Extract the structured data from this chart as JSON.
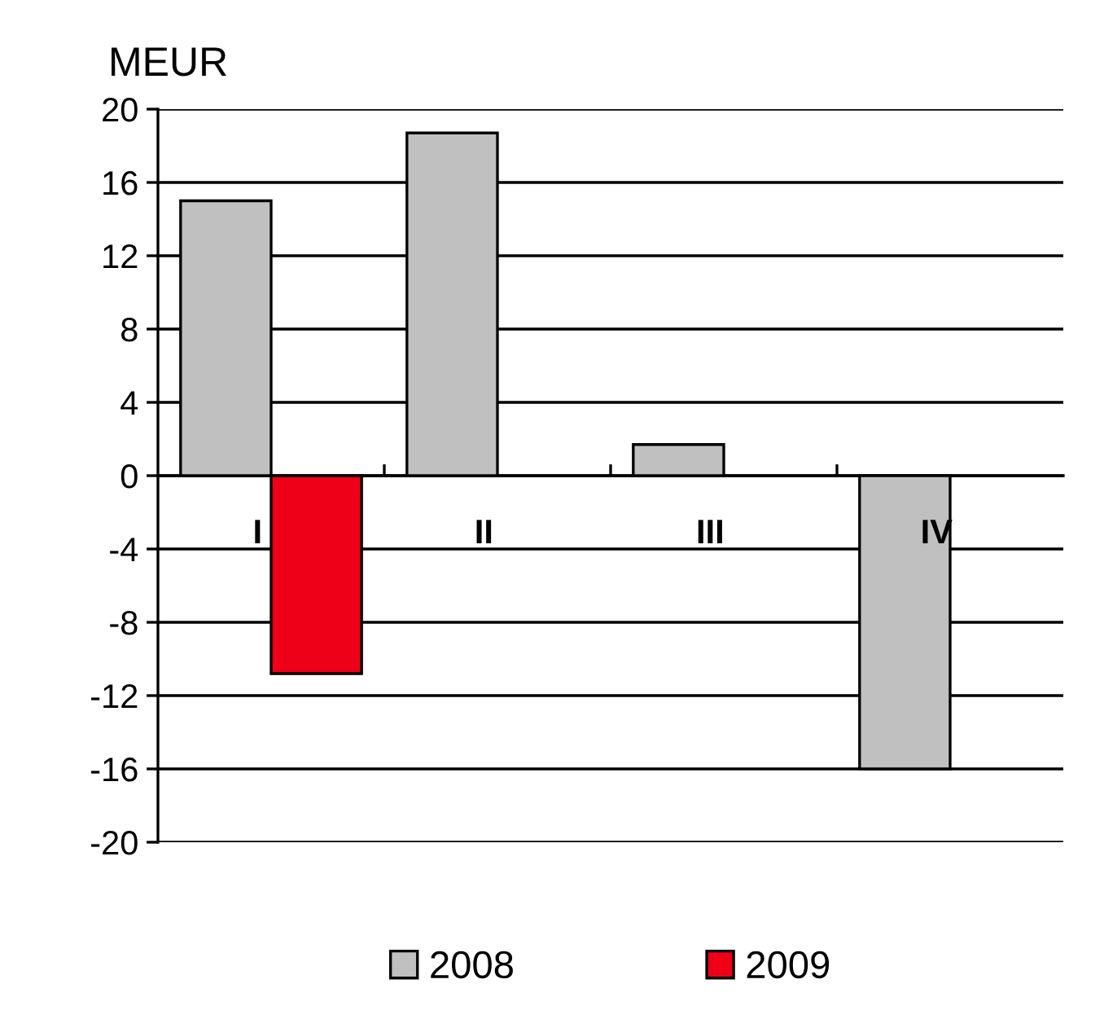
{
  "chart_data": {
    "type": "bar",
    "ylabel": "MEUR",
    "categories": [
      "I",
      "II",
      "III",
      "IV"
    ],
    "series": [
      {
        "name": "2008",
        "color": "#c0c0c0",
        "values": [
          15.0,
          18.7,
          1.7,
          -16.0
        ]
      },
      {
        "name": "2009",
        "color": "#ee0019",
        "values": [
          -10.8,
          null,
          null,
          null
        ]
      }
    ],
    "ylim": [
      -20,
      20
    ],
    "yticks": [
      -20,
      -16,
      -12,
      -8,
      -4,
      0,
      4,
      8,
      12,
      16,
      20
    ],
    "grid": "y",
    "legend": "bottom"
  }
}
